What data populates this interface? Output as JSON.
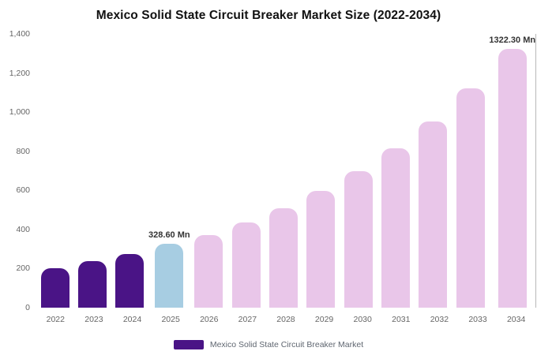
{
  "chart_data": {
    "type": "bar",
    "title": "Mexico Solid State Circuit Breaker Market Size (2022-2034)",
    "categories": [
      "2022",
      "2023",
      "2024",
      "2025",
      "2026",
      "2027",
      "2028",
      "2029",
      "2030",
      "2031",
      "2032",
      "2033",
      "2034"
    ],
    "values": [
      200,
      240,
      275,
      328.6,
      372,
      436,
      508,
      596,
      698,
      816,
      952,
      1120,
      1322.3
    ],
    "bar_colors": [
      "#4a1486",
      "#4a1486",
      "#4a1486",
      "#a7cde2",
      "#e9c6e9",
      "#e9c6e9",
      "#e9c6e9",
      "#e9c6e9",
      "#e9c6e9",
      "#e9c6e9",
      "#e9c6e9",
      "#e9c6e9",
      "#e9c6e9"
    ],
    "point_labels": [
      "",
      "",
      "",
      "328.60 Mn",
      "",
      "",
      "",
      "",
      "",
      "",
      "",
      "",
      "1322.30 Mn"
    ],
    "xlabel": "",
    "ylabel": "",
    "ylim": [
      0,
      1400
    ],
    "ytick_values": [
      0,
      200,
      400,
      600,
      800,
      1000,
      1200,
      1400
    ],
    "ytick_labels": [
      "0",
      "200",
      "400",
      "600",
      "800",
      "1,000",
      "1,200",
      "1,400"
    ],
    "grid": false,
    "legend_position": "bottom",
    "legend": {
      "label": "Mexico Solid State Circuit Breaker Market",
      "swatch_color": "#4a1486"
    }
  }
}
